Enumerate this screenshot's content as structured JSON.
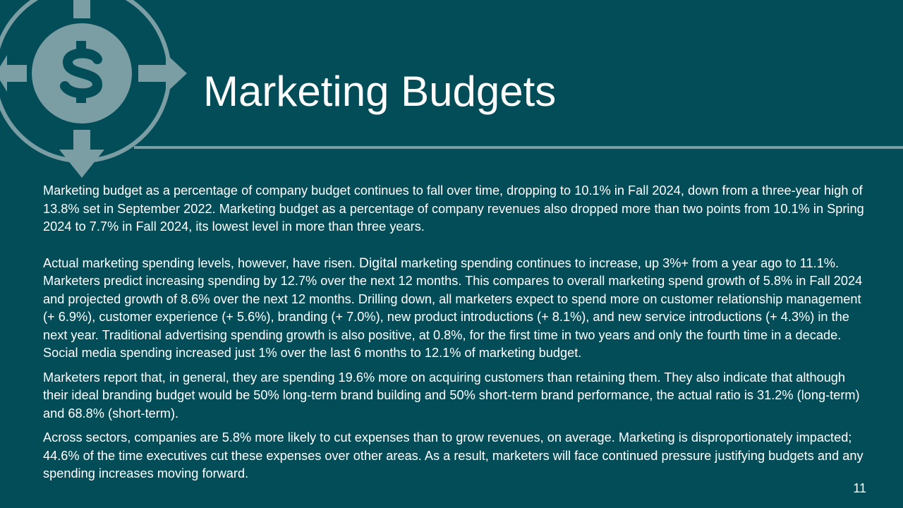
{
  "slide": {
    "title": "Marketing Budgets",
    "page_number": "11",
    "accent_color": "#7a9ea3",
    "background_color": "#034d58",
    "icon": "dollar-circle-arrows-icon"
  },
  "paragraphs": [
    "Marketing budget as a percentage of company budget continues to fall over time, dropping to 10.1% in Fall 2024, down from a three-year high of 13.8% set in September 2022. Marketing budget as a percentage of company revenues also dropped more than two points from 10.1% in Spring 2024 to 7.7% in Fall 2024, its lowest level in more than three years.",
    {
      "lead": "Actual marketing spending levels, however, have risen. ",
      "emphasis": "Digital",
      "rest": " marketing spending continues to increase, up 3%+ from a year ago to 11.1%. Marketers predict increasing spending by 12.7% over the next 12 months. This compares to overall marketing spend growth of 5.8% in Fall 2024 and projected growth of 8.6% over the next 12 months. Drilling down, all marketers expect to spend more on customer relationship management (+ 6.9%), customer experience (+ 5.6%), branding (+ 7.0%), new product introductions (+ 8.1%), and new service introductions (+ 4.3%) in the next year. Traditional advertising spending growth is also positive, at 0.8%, for the first time in two years and only the fourth time in a decade. Social media spending increased just 1% over the last 6 months to 12.1% of marketing budget."
    },
    "Marketers report that, in general, they are spending 19.6% more on acquiring customers than retaining them. They also indicate that although their ideal branding budget would be 50% long-term brand building and 50% short-term brand performance, the actual ratio is 31.2% (long-term) and 68.8% (short-term).",
    "Across sectors, companies are 5.8% more likely to cut expenses than to grow revenues, on average. Marketing is disproportionately impacted; 44.6% of the time executives cut these expenses over other areas. As a result, marketers will face continued pressure justifying budgets and any spending increases moving forward."
  ]
}
